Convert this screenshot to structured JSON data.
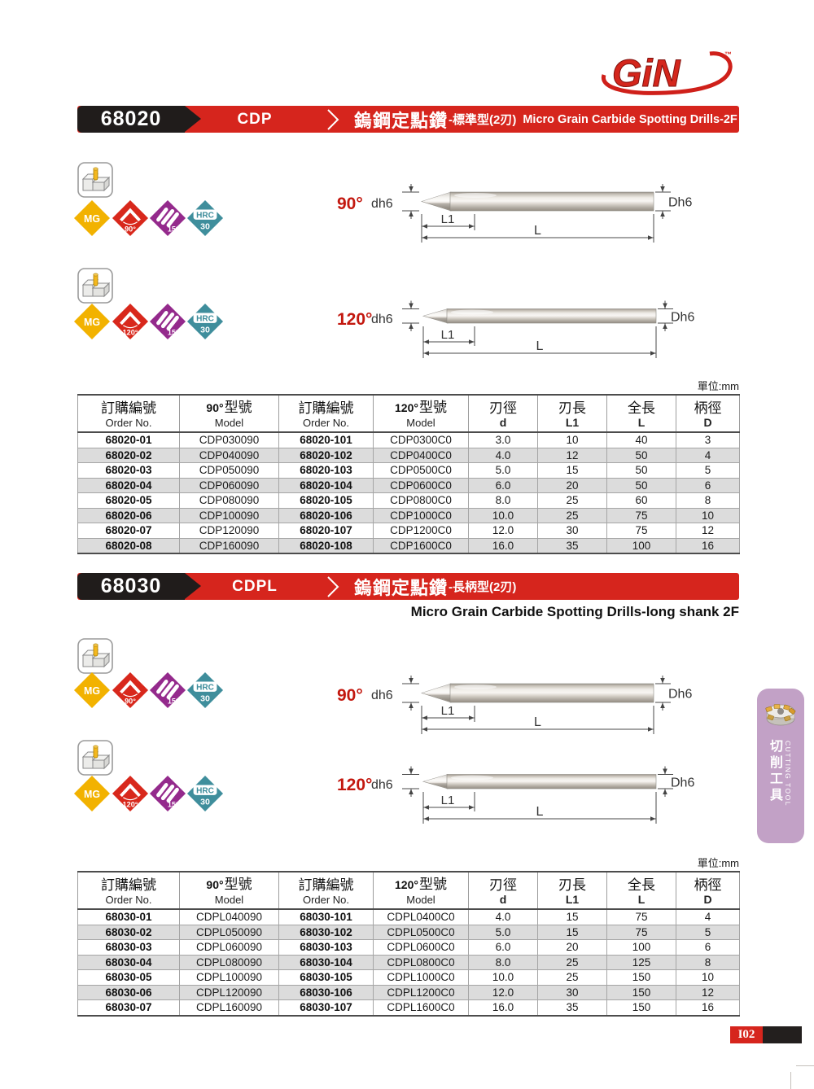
{
  "logo": {
    "text": "GiN",
    "tm": "™"
  },
  "banners": [
    {
      "code": "68020",
      "series": "CDP",
      "title_zh": "鎢鋼定點鑽",
      "title_suffix": "-標準型(2刃)",
      "title_en": "Micro Grain Carbide Spotting Drills-2F"
    },
    {
      "code": "68030",
      "series": "CDPL",
      "title_zh": "鎢鋼定點鑽",
      "title_suffix": "-長柄型(2刃)",
      "subtitle_en": "Micro Grain Carbide Spotting Drills-long shank 2F"
    }
  ],
  "badges": {
    "mg": "MG",
    "deg90": "90°",
    "deg120": "120°",
    "helix": "15°",
    "hrc_line1": "HRC",
    "hrc_line2": "30"
  },
  "diagram_labels": {
    "deg90": "90°",
    "deg120": "120°",
    "dh6": "dh6",
    "Dh6": "Dh6",
    "l1": "L1",
    "l": "L"
  },
  "unit_label": "單位:mm",
  "table_headers": [
    {
      "prefix": "",
      "zh": "訂購編號",
      "en": "Order No."
    },
    {
      "prefix": "90°",
      "zh": "型號",
      "en": "Model"
    },
    {
      "prefix": "",
      "zh": "訂購編號",
      "en": "Order No."
    },
    {
      "prefix": "120°",
      "zh": "型號",
      "en": "Model"
    },
    {
      "prefix": "",
      "zh": "刃徑",
      "en": "d"
    },
    {
      "prefix": "",
      "zh": "刃長",
      "en": "L1"
    },
    {
      "prefix": "",
      "zh": "全長",
      "en": "L"
    },
    {
      "prefix": "",
      "zh": "柄徑",
      "en": "D"
    }
  ],
  "tables": [
    {
      "rows": [
        [
          "68020-01",
          "CDP030090",
          "68020-101",
          "CDP0300C0",
          "3.0",
          "10",
          "40",
          "3"
        ],
        [
          "68020-02",
          "CDP040090",
          "68020-102",
          "CDP0400C0",
          "4.0",
          "12",
          "50",
          "4"
        ],
        [
          "68020-03",
          "CDP050090",
          "68020-103",
          "CDP0500C0",
          "5.0",
          "15",
          "50",
          "5"
        ],
        [
          "68020-04",
          "CDP060090",
          "68020-104",
          "CDP0600C0",
          "6.0",
          "20",
          "50",
          "6"
        ],
        [
          "68020-05",
          "CDP080090",
          "68020-105",
          "CDP0800C0",
          "8.0",
          "25",
          "60",
          "8"
        ],
        [
          "68020-06",
          "CDP100090",
          "68020-106",
          "CDP1000C0",
          "10.0",
          "25",
          "75",
          "10"
        ],
        [
          "68020-07",
          "CDP120090",
          "68020-107",
          "CDP1200C0",
          "12.0",
          "30",
          "75",
          "12"
        ],
        [
          "68020-08",
          "CDP160090",
          "68020-108",
          "CDP1600C0",
          "16.0",
          "35",
          "100",
          "16"
        ]
      ]
    },
    {
      "rows": [
        [
          "68030-01",
          "CDPL040090",
          "68030-101",
          "CDPL0400C0",
          "4.0",
          "15",
          "75",
          "4"
        ],
        [
          "68030-02",
          "CDPL050090",
          "68030-102",
          "CDPL0500C0",
          "5.0",
          "15",
          "75",
          "5"
        ],
        [
          "68030-03",
          "CDPL060090",
          "68030-103",
          "CDPL0600C0",
          "6.0",
          "20",
          "100",
          "6"
        ],
        [
          "68030-04",
          "CDPL080090",
          "68030-104",
          "CDPL0800C0",
          "8.0",
          "25",
          "125",
          "8"
        ],
        [
          "68030-05",
          "CDPL100090",
          "68030-105",
          "CDPL1000C0",
          "10.0",
          "25",
          "150",
          "10"
        ],
        [
          "68030-06",
          "CDPL120090",
          "68030-106",
          "CDPL1200C0",
          "12.0",
          "30",
          "150",
          "12"
        ],
        [
          "68030-07",
          "CDPL160090",
          "68030-107",
          "CDPL1600C0",
          "16.0",
          "35",
          "150",
          "16"
        ]
      ]
    }
  ],
  "side_tab": {
    "zh": "切削工具",
    "en": "CUTTING TOOL"
  },
  "page_number": "I02",
  "colors": {
    "accent_red": "#d6251d",
    "badge_black": "#201c1b",
    "diamond_yellow": "#f2b200",
    "diamond_red": "#d8281c",
    "diamond_purple": "#942a8c",
    "diamond_teal": "#3f8e9c",
    "tab_purple": "#c2a1c6",
    "row_alt": "#dcdcdc"
  }
}
